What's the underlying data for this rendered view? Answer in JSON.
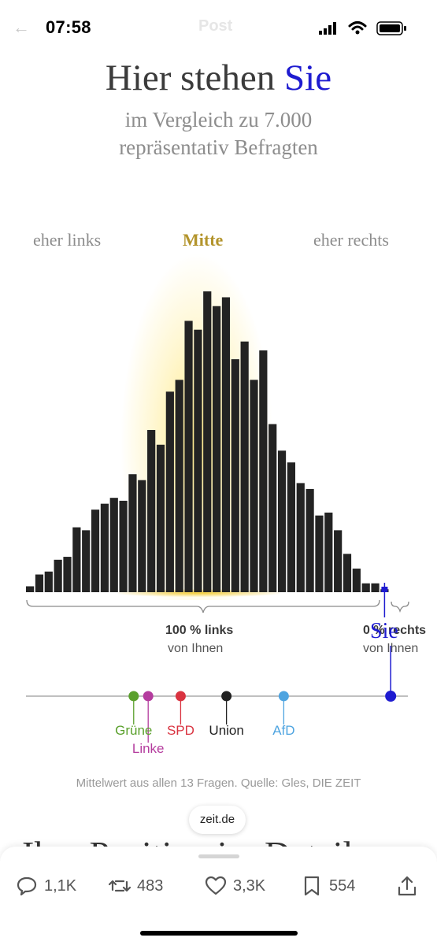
{
  "status_bar": {
    "time": "07:58",
    "screen_title": "Post"
  },
  "header": {
    "title_prefix": "Hier stehen",
    "title_accent": "Sie",
    "subtitle_line1": "im Vergleich zu 7.000",
    "subtitle_line2": "repräsentativ Befragten",
    "accent_color": "#1e1bd0"
  },
  "regions": {
    "left": "eher links",
    "middle": "Mitte",
    "right": "eher rechts"
  },
  "chart_data": {
    "type": "bar",
    "title": "Hier stehen Sie",
    "categories": [
      "1",
      "2",
      "3",
      "4",
      "5",
      "6",
      "7",
      "8",
      "9",
      "10",
      "11",
      "12",
      "13",
      "14",
      "15",
      "16",
      "17",
      "18",
      "19",
      "20",
      "21",
      "22",
      "23",
      "24",
      "25",
      "26",
      "27",
      "28",
      "29",
      "30",
      "31",
      "32",
      "33",
      "34",
      "35",
      "36",
      "37",
      "38",
      "39"
    ],
    "values": [
      2,
      6,
      7,
      11,
      12,
      22,
      21,
      28,
      30,
      32,
      31,
      40,
      38,
      55,
      50,
      68,
      72,
      92,
      89,
      102,
      97,
      100,
      79,
      85,
      72,
      82,
      57,
      48,
      44,
      37,
      35,
      26,
      27,
      21,
      13,
      8,
      3,
      3,
      1
    ],
    "marker": {
      "label": "Sie",
      "bin_index": 38,
      "color": "#1e1bd0"
    },
    "bar_color": "#232323",
    "highlight_region": "Mitte",
    "left_summary": {
      "value": "100 %",
      "label": "links",
      "sub": "von Ihnen"
    },
    "right_summary": {
      "value": "0 %",
      "label": "rechts",
      "sub": "von Ihnen"
    },
    "parties": [
      {
        "name": "Grüne",
        "position": 0.282,
        "color": "#5aa02c"
      },
      {
        "name": "Linke",
        "position": 0.32,
        "color": "#b43c9e"
      },
      {
        "name": "SPD",
        "position": 0.405,
        "color": "#d93340"
      },
      {
        "name": "Union",
        "position": 0.525,
        "color": "#222222"
      },
      {
        "name": "AfD",
        "position": 0.675,
        "color": "#4ea4e0"
      }
    ],
    "user_position": 0.955
  },
  "footer": {
    "source": "Mittelwert aus allen 13 Fragen. Quelle: Gles, DIE ZEIT",
    "link_pill": "zeit.de",
    "next_heading": "Ihre Position im Detail"
  },
  "actions": {
    "replies": "1,1K",
    "reposts": "483",
    "likes": "3,3K",
    "bookmarks": "554"
  }
}
